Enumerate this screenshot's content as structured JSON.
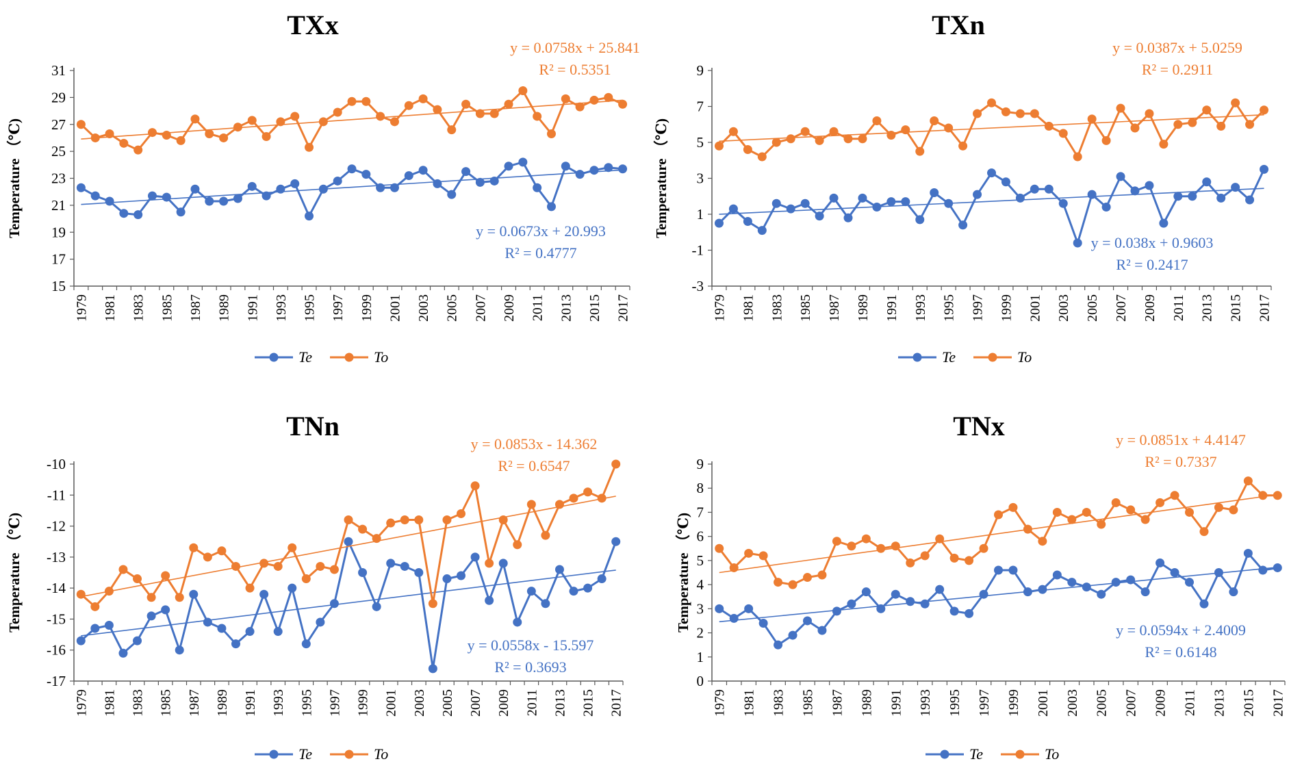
{
  "colors": {
    "te": "#4472c4",
    "to": "#ed7d31",
    "axis": "#000000",
    "text": "#000000"
  },
  "chart_data": [
    {
      "type": "line",
      "title": "TXx",
      "ylabel": "Temperature （℃)",
      "ylim": [
        15,
        31
      ],
      "yticks": [
        "15",
        "17",
        "19",
        "21",
        "23",
        "25",
        "27",
        "29",
        "31"
      ],
      "x": [
        1979,
        1980,
        1981,
        1982,
        1983,
        1984,
        1985,
        1986,
        1987,
        1988,
        1989,
        1990,
        1991,
        1992,
        1993,
        1994,
        1995,
        1996,
        1997,
        1998,
        1999,
        2000,
        2001,
        2002,
        2003,
        2004,
        2005,
        2006,
        2007,
        2008,
        2009,
        2010,
        2011,
        2012,
        2013,
        2014,
        2015,
        2016,
        2017
      ],
      "xticks": [
        "1979",
        "1981",
        "1983",
        "1985",
        "1987",
        "1989",
        "1991",
        "1993",
        "1995",
        "1997",
        "1999",
        "2001",
        "2003",
        "2005",
        "2007",
        "2009",
        "2011",
        "2013",
        "2015",
        "2017"
      ],
      "series": [
        {
          "name": "Te",
          "values": [
            22.3,
            21.7,
            21.3,
            20.4,
            20.3,
            21.7,
            21.6,
            20.5,
            22.2,
            21.3,
            21.3,
            21.5,
            22.4,
            21.7,
            22.2,
            22.6,
            20.2,
            22.2,
            22.8,
            23.7,
            23.3,
            22.3,
            22.3,
            23.2,
            23.6,
            22.6,
            21.8,
            23.5,
            22.7,
            22.8,
            23.9,
            24.2,
            22.3,
            20.9,
            23.9,
            23.3,
            23.6,
            23.8,
            23.7
          ],
          "trend": {
            "slope": 0.0673,
            "intercept": 20.993
          },
          "equation": "y = 0.0673x   + 20.993",
          "r2": "R² = 0.4777"
        },
        {
          "name": "To",
          "values": [
            27.0,
            26.0,
            26.3,
            25.6,
            25.1,
            26.4,
            26.2,
            25.8,
            27.4,
            26.3,
            26.0,
            26.8,
            27.3,
            26.1,
            27.2,
            27.6,
            25.3,
            27.2,
            27.9,
            28.7,
            28.7,
            27.6,
            27.2,
            28.4,
            28.9,
            28.1,
            26.6,
            28.5,
            27.8,
            27.8,
            28.5,
            29.5,
            27.6,
            26.3,
            28.9,
            28.3,
            28.8,
            29.0,
            28.5
          ],
          "trend": {
            "slope": 0.0758,
            "intercept": 25.841
          },
          "equation": "y = 0.0758x   + 25.841",
          "r2": "R² = 0.5351"
        }
      ],
      "legend": [
        "Te",
        "To"
      ]
    },
    {
      "type": "line",
      "title": "TXn",
      "ylabel": "Temperature （℃)",
      "ylim": [
        -3,
        9
      ],
      "yticks": [
        "-3",
        "-1",
        "1",
        "3",
        "5",
        "7",
        "9"
      ],
      "x": [
        1979,
        1980,
        1981,
        1982,
        1983,
        1984,
        1985,
        1986,
        1987,
        1988,
        1989,
        1990,
        1991,
        1992,
        1993,
        1994,
        1995,
        1996,
        1997,
        1998,
        1999,
        2000,
        2001,
        2002,
        2003,
        2004,
        2005,
        2006,
        2007,
        2008,
        2009,
        2010,
        2011,
        2012,
        2013,
        2014,
        2015,
        2016,
        2017
      ],
      "xticks": [
        "1979",
        "1981",
        "1983",
        "1985",
        "1987",
        "1989",
        "1991",
        "1993",
        "1995",
        "1997",
        "1999",
        "2001",
        "2003",
        "2005",
        "2007",
        "2009",
        "2011",
        "2013",
        "2015",
        "2017"
      ],
      "series": [
        {
          "name": "Te",
          "values": [
            0.5,
            1.3,
            0.6,
            0.1,
            1.6,
            1.3,
            1.6,
            0.9,
            1.9,
            0.8,
            1.9,
            1.4,
            1.7,
            1.7,
            0.7,
            2.2,
            1.6,
            0.4,
            2.1,
            3.3,
            2.8,
            1.9,
            2.4,
            2.4,
            1.6,
            -0.6,
            2.1,
            1.4,
            3.1,
            2.3,
            2.6,
            0.5,
            2.0,
            2.0,
            2.8,
            1.9,
            2.5,
            1.8,
            3.5
          ],
          "trend": {
            "slope": 0.038,
            "intercept": 0.9603
          },
          "equation": "y = 0.038x   + 0.9603",
          "r2": "R² = 0.2417"
        },
        {
          "name": "To",
          "values": [
            4.8,
            5.6,
            4.6,
            4.2,
            5.0,
            5.2,
            5.6,
            5.1,
            5.6,
            5.2,
            5.2,
            6.2,
            5.4,
            5.7,
            4.5,
            6.2,
            5.8,
            4.8,
            6.6,
            7.2,
            6.7,
            6.6,
            6.6,
            5.9,
            5.5,
            4.2,
            6.3,
            5.1,
            6.9,
            5.8,
            6.6,
            4.9,
            6.0,
            6.1,
            6.8,
            5.9,
            7.2,
            6.0,
            6.8
          ],
          "trend": {
            "slope": 0.0387,
            "intercept": 5.0259
          },
          "equation": "y = 0.0387x   + 5.0259",
          "r2": "R² = 0.2911"
        }
      ],
      "legend": [
        "Te",
        "To"
      ]
    },
    {
      "type": "line",
      "title": "TNn",
      "ylabel": "Temperature （℃)",
      "ylim": [
        -17,
        -10
      ],
      "yticks": [
        "-17",
        "-16",
        "-15",
        "-14",
        "-13",
        "-12",
        "-11",
        "-10"
      ],
      "x": [
        1979,
        1980,
        1981,
        1982,
        1983,
        1984,
        1985,
        1986,
        1987,
        1988,
        1989,
        1990,
        1991,
        1992,
        1993,
        1994,
        1995,
        1996,
        1997,
        1998,
        1999,
        2000,
        2001,
        2002,
        2003,
        2004,
        2005,
        2006,
        2007,
        2008,
        2009,
        2010,
        2011,
        2012,
        2013,
        2014,
        2015,
        2016,
        2017
      ],
      "xticks": [
        "1979",
        "1981",
        "1983",
        "1985",
        "1987",
        "1989",
        "1991",
        "1993",
        "1995",
        "1997",
        "1999",
        "2001",
        "2003",
        "2005",
        "2007",
        "2009",
        "2011",
        "2013",
        "2015",
        "2017"
      ],
      "series": [
        {
          "name": "Te",
          "values": [
            -15.7,
            -15.3,
            -15.2,
            -16.1,
            -15.7,
            -14.9,
            -14.7,
            -16.0,
            -14.2,
            -15.1,
            -15.3,
            -15.8,
            -15.4,
            -14.2,
            -15.4,
            -14.0,
            -15.8,
            -15.1,
            -14.5,
            -12.5,
            -13.5,
            -14.6,
            -13.2,
            -13.3,
            -13.5,
            -16.6,
            -13.7,
            -13.6,
            -13.0,
            -14.4,
            -13.2,
            -15.1,
            -14.1,
            -14.5,
            -13.4,
            -14.1,
            -14.0,
            -13.7,
            -12.5
          ],
          "trend": {
            "slope": 0.0558,
            "intercept": -15.597
          },
          "equation": "y = 0.0558x   - 15.597",
          "r2": "R² = 0.3693"
        },
        {
          "name": "To",
          "values": [
            -14.2,
            -14.6,
            -14.1,
            -13.4,
            -13.7,
            -14.3,
            -13.6,
            -14.3,
            -12.7,
            -13.0,
            -12.8,
            -13.3,
            -14.0,
            -13.2,
            -13.3,
            -12.7,
            -13.7,
            -13.3,
            -13.4,
            -11.8,
            -12.1,
            -12.4,
            -11.9,
            -11.8,
            -11.8,
            -14.5,
            -11.8,
            -11.6,
            -10.7,
            -13.2,
            -11.8,
            -12.6,
            -11.3,
            -12.3,
            -11.3,
            -11.1,
            -10.9,
            -11.1,
            -10.0
          ],
          "trend": {
            "slope": 0.0853,
            "intercept": -14.362
          },
          "equation": "y = 0.0853x   - 14.362",
          "r2": "R² = 0.6547"
        }
      ],
      "legend": [
        "Te",
        "To"
      ]
    },
    {
      "type": "line",
      "title": "TNx",
      "ylabel": "Temperature （℃)",
      "ylim": [
        0,
        9
      ],
      "yticks": [
        "0",
        "1",
        "2",
        "3",
        "4",
        "5",
        "6",
        "7",
        "8",
        "9"
      ],
      "x": [
        1979,
        1980,
        1981,
        1982,
        1983,
        1984,
        1985,
        1986,
        1987,
        1988,
        1989,
        1990,
        1991,
        1992,
        1993,
        1994,
        1995,
        1996,
        1997,
        1998,
        1999,
        2000,
        2001,
        2002,
        2003,
        2004,
        2005,
        2006,
        2007,
        2008,
        2009,
        2010,
        2011,
        2012,
        2013,
        2014,
        2015,
        2016,
        2017
      ],
      "xticks": [
        "1979",
        "1981",
        "1983",
        "1985",
        "1987",
        "1989",
        "1991",
        "1993",
        "1995",
        "1997",
        "1999",
        "2001",
        "2003",
        "2005",
        "2007",
        "2009",
        "2011",
        "2013",
        "2015",
        "2017"
      ],
      "series": [
        {
          "name": "Te",
          "values": [
            3.0,
            2.6,
            3.0,
            2.4,
            1.5,
            1.9,
            2.5,
            2.1,
            2.9,
            3.2,
            3.7,
            3.0,
            3.6,
            3.3,
            3.2,
            3.8,
            2.9,
            2.8,
            3.6,
            4.6,
            4.6,
            3.7,
            3.8,
            4.4,
            4.1,
            3.9,
            3.6,
            4.1,
            4.2,
            3.7,
            4.9,
            4.5,
            4.1,
            3.2,
            4.5,
            3.7,
            5.3,
            4.6,
            4.7
          ],
          "trend": {
            "slope": 0.0594,
            "intercept": 2.4009
          },
          "equation": "y = 0.0594x   + 2.4009",
          "r2": "R² = 0.6148"
        },
        {
          "name": "To",
          "values": [
            5.5,
            4.7,
            5.3,
            5.2,
            4.1,
            4.0,
            4.3,
            4.4,
            5.8,
            5.6,
            5.9,
            5.5,
            5.6,
            4.9,
            5.2,
            5.9,
            5.1,
            5.0,
            5.5,
            6.9,
            7.2,
            6.3,
            5.8,
            7.0,
            6.7,
            7.0,
            6.5,
            7.4,
            7.1,
            6.7,
            7.4,
            7.7,
            7.0,
            6.2,
            7.2,
            7.1,
            8.3,
            7.7,
            7.7
          ],
          "trend": {
            "slope": 0.0851,
            "intercept": 4.4147
          },
          "equation": "y = 0.0851x   + 4.4147",
          "r2": "R² = 0.7337"
        }
      ],
      "legend": [
        "Te",
        "To"
      ]
    }
  ]
}
